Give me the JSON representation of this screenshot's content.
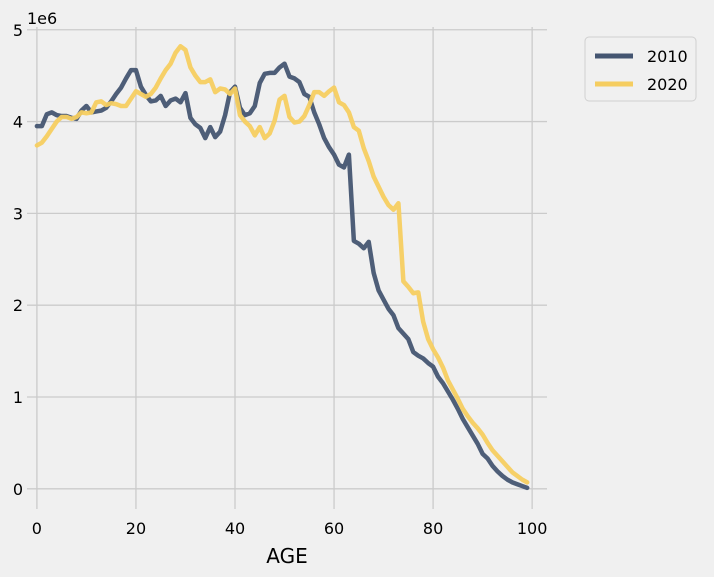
{
  "chart_data": {
    "type": "line",
    "xlabel": "AGE",
    "ylabel": "",
    "scale_label": "1e6",
    "xlim": [
      -2,
      103
    ],
    "ylim": [
      -0.22,
      5.03
    ],
    "x_ticks": [
      0,
      20,
      40,
      60,
      80,
      100
    ],
    "y_ticks": [
      0,
      1,
      2,
      3,
      4,
      5
    ],
    "grid": true,
    "legend_position": "outside-top-right",
    "x": [
      0,
      1,
      2,
      3,
      4,
      5,
      6,
      7,
      8,
      9,
      10,
      11,
      12,
      13,
      14,
      15,
      16,
      17,
      18,
      19,
      20,
      21,
      22,
      23,
      24,
      25,
      26,
      27,
      28,
      29,
      30,
      31,
      32,
      33,
      34,
      35,
      36,
      37,
      38,
      39,
      40,
      41,
      42,
      43,
      44,
      45,
      46,
      47,
      48,
      49,
      50,
      51,
      52,
      53,
      54,
      55,
      56,
      57,
      58,
      59,
      60,
      61,
      62,
      63,
      64,
      65,
      66,
      67,
      68,
      69,
      70,
      71,
      72,
      73,
      74,
      75,
      76,
      77,
      78,
      79,
      80,
      81,
      82,
      83,
      84,
      85,
      86,
      87,
      88,
      89,
      90,
      91,
      92,
      93,
      94,
      95,
      96,
      97,
      98,
      99
    ],
    "series": [
      {
        "name": "2010",
        "color": "#445571",
        "values": [
          3.95,
          3.95,
          4.08,
          4.1,
          4.07,
          4.06,
          4.06,
          4.04,
          4.03,
          4.12,
          4.17,
          4.1,
          4.11,
          4.12,
          4.15,
          4.22,
          4.3,
          4.37,
          4.47,
          4.56,
          4.56,
          4.38,
          4.29,
          4.22,
          4.23,
          4.28,
          4.17,
          4.23,
          4.25,
          4.21,
          4.31,
          4.04,
          3.97,
          3.93,
          3.82,
          3.94,
          3.83,
          3.89,
          4.07,
          4.32,
          4.38,
          4.15,
          4.07,
          4.09,
          4.17,
          4.42,
          4.52,
          4.53,
          4.53,
          4.59,
          4.63,
          4.49,
          4.47,
          4.43,
          4.3,
          4.27,
          4.1,
          3.97,
          3.82,
          3.72,
          3.64,
          3.53,
          3.5,
          3.64,
          2.7,
          2.67,
          2.62,
          2.69,
          2.35,
          2.16,
          2.06,
          1.96,
          1.89,
          1.75,
          1.69,
          1.63,
          1.49,
          1.45,
          1.42,
          1.37,
          1.33,
          1.22,
          1.15,
          1.06,
          0.97,
          0.87,
          0.76,
          0.67,
          0.58,
          0.49,
          0.38,
          0.33,
          0.25,
          0.19,
          0.14,
          0.1,
          0.07,
          0.05,
          0.03,
          0.01
        ]
      },
      {
        "name": "2020",
        "color": "#f5cd60",
        "values": [
          3.74,
          3.77,
          3.84,
          3.92,
          4.0,
          4.05,
          4.05,
          4.03,
          4.05,
          4.1,
          4.09,
          4.1,
          4.21,
          4.22,
          4.18,
          4.2,
          4.19,
          4.17,
          4.17,
          4.25,
          4.33,
          4.3,
          4.27,
          4.3,
          4.37,
          4.47,
          4.56,
          4.63,
          4.75,
          4.82,
          4.78,
          4.59,
          4.5,
          4.43,
          4.43,
          4.46,
          4.32,
          4.36,
          4.35,
          4.3,
          4.36,
          4.07,
          4.0,
          3.95,
          3.85,
          3.94,
          3.82,
          3.87,
          4.01,
          4.24,
          4.28,
          4.05,
          3.99,
          4.0,
          4.06,
          4.18,
          4.32,
          4.32,
          4.28,
          4.33,
          4.37,
          4.21,
          4.18,
          4.1,
          3.94,
          3.9,
          3.71,
          3.57,
          3.4,
          3.29,
          3.18,
          3.09,
          3.04,
          3.11,
          2.26,
          2.2,
          2.13,
          2.14,
          1.82,
          1.63,
          1.52,
          1.43,
          1.32,
          1.18,
          1.08,
          0.98,
          0.87,
          0.79,
          0.72,
          0.66,
          0.59,
          0.5,
          0.42,
          0.36,
          0.3,
          0.24,
          0.18,
          0.14,
          0.1,
          0.07
        ]
      }
    ]
  }
}
